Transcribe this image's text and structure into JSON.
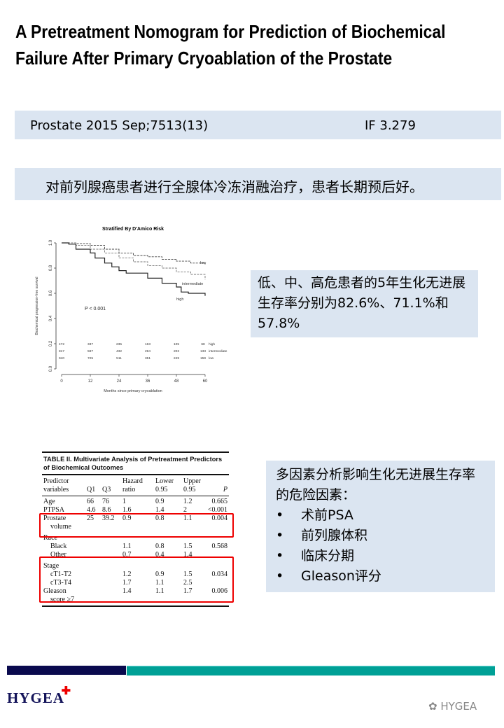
{
  "title": "A Pretreatment Nomogram for Prediction of Biochemical Failure After Primary Cryoablation of the Prostate",
  "citation": {
    "journal": "Prostate 2015 Sep;7513(13)",
    "impact_factor": "IF 3.279"
  },
  "summary": "对前列腺癌患者进行全腺体冷冻消融治疗，患者长期预后好。",
  "survival_note": "低、中、高危患者的5年生化无进展生存率分别为82.6%、71.1%和57.8%",
  "risk_factors": {
    "heading": "多因素分析影响生化无进展生存率的危险因素：",
    "items": [
      "术前PSA",
      "前列腺体积",
      "临床分期",
      "Gleason评分"
    ],
    "bullet": "•"
  },
  "chart_data": {
    "type": "line",
    "title": "Stratified By D'Amico Risk",
    "xlabel": "Months since primary cryoablation",
    "ylabel": "Biochemical progression-free survival",
    "xlim": [
      0,
      60
    ],
    "ylim": [
      0,
      1
    ],
    "xticks": [
      "0",
      "12",
      "24",
      "36",
      "48",
      "60"
    ],
    "yticks": [
      "0.0",
      "0.2",
      "0.4",
      "0.6",
      "0.8",
      "1.0"
    ],
    "annotation": "P < 0.001",
    "series": [
      {
        "name": "low",
        "style": "dashed",
        "x": [
          0,
          6,
          12,
          18,
          24,
          30,
          36,
          42,
          48,
          54,
          60
        ],
        "y": [
          1,
          0.995,
          0.98,
          0.95,
          0.92,
          0.9,
          0.89,
          0.87,
          0.855,
          0.84,
          0.83
        ]
      },
      {
        "name": "intermediate",
        "style": "dashed",
        "x": [
          0,
          6,
          12,
          18,
          24,
          30,
          36,
          42,
          48,
          54,
          60
        ],
        "y": [
          1,
          0.98,
          0.95,
          0.92,
          0.88,
          0.85,
          0.82,
          0.8,
          0.77,
          0.75,
          0.71
        ]
      },
      {
        "name": "high",
        "style": "solid",
        "x": [
          0,
          3,
          6,
          12,
          14,
          18,
          21,
          24,
          27,
          33,
          36,
          42,
          48,
          50,
          53,
          59,
          60
        ],
        "y": [
          1,
          0.99,
          0.95,
          0.92,
          0.88,
          0.84,
          0.81,
          0.78,
          0.76,
          0.76,
          0.72,
          0.68,
          0.65,
          0.61,
          0.6,
          0.6,
          0.58
        ]
      }
    ],
    "at_risk": [
      {
        "name": "high",
        "values": [
          "472",
          "337",
          "235",
          "163",
          "105",
          "68"
        ]
      },
      {
        "name": "intermediate",
        "values": [
          "817",
          "597",
          "432",
          "294",
          "203",
          "133"
        ]
      },
      {
        "name": "low",
        "values": [
          "940",
          "725",
          "511",
          "351",
          "249",
          "159"
        ]
      }
    ]
  },
  "table": {
    "caption": "TABLE II.  Multivariate Analysis of Pretreatment Predictors of Biochemical Outcomes",
    "header1": [
      "Predictor",
      "",
      "",
      "Hazard",
      "Lower",
      "Upper",
      ""
    ],
    "header2": [
      "variables",
      "Q1",
      "Q3",
      "ratio",
      "0.95",
      "0.95",
      "P"
    ],
    "rows": [
      [
        "Age",
        "66",
        "76",
        "1",
        "0.9",
        "1.2",
        "0.665"
      ],
      [
        "PTPSA",
        "4.6",
        "8.6",
        "1.6",
        "1.4",
        "2",
        "<0.001"
      ],
      [
        "Prostate",
        "25",
        "39.2",
        "0.9",
        "0.8",
        "1.1",
        "0.004"
      ],
      [
        "  volume",
        "",
        "",
        "",
        "",
        "",
        ""
      ],
      [
        "Race",
        "",
        "",
        "",
        "",
        "",
        ""
      ],
      [
        "  Black",
        "",
        "",
        "1.1",
        "0.8",
        "1.5",
        "0.568"
      ],
      [
        "  Other",
        "",
        "",
        "0.7",
        "0.4",
        "1.4",
        ""
      ],
      [
        "Stage",
        "",
        "",
        "",
        "",
        "",
        ""
      ],
      [
        "  cT1-T2",
        "",
        "",
        "1.2",
        "0.9",
        "1.5",
        "0.034"
      ],
      [
        "  cT3-T4",
        "",
        "",
        "1.7",
        "1.1",
        "2.5",
        ""
      ],
      [
        "Gleason",
        "",
        "",
        "1.4",
        "1.1",
        "1.7",
        "0.006"
      ],
      [
        "  score ≥7",
        "",
        "",
        "",
        "",
        "",
        ""
      ]
    ]
  },
  "footer": {
    "logo": "HYGEA",
    "watermark": "HYGEA"
  },
  "colors": {
    "box_bg": "#dbe5f1",
    "highlight": "#ee0000",
    "bar_navy": "#0a0a4e",
    "bar_teal": "#00a096"
  }
}
